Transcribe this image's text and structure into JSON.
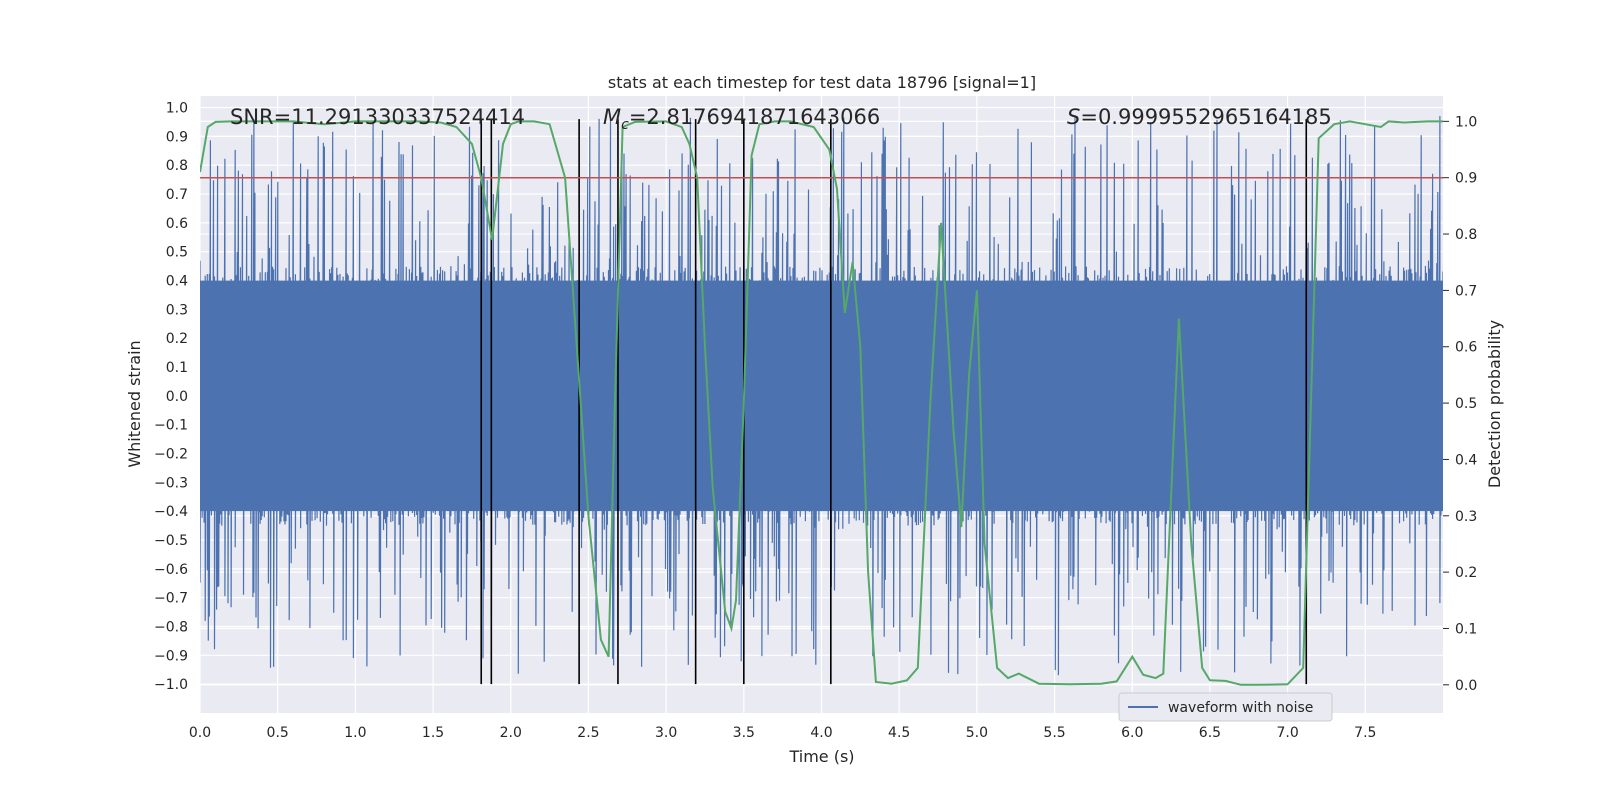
{
  "chart_data": {
    "type": "line",
    "title": "stats at each timestep for test data 18796 [signal=1]",
    "xlabel": "Time (s)",
    "ylabel": "Whitened strain",
    "y2label": "Detection probability",
    "xlim": [
      0.0,
      8.0
    ],
    "ylim": [
      -1.1,
      1.04
    ],
    "y2lim": [
      -0.05,
      1.045
    ],
    "grid": true,
    "legend_position": "bottom-right",
    "x_ticks": [
      "0.0",
      "0.5",
      "1.0",
      "1.5",
      "2.0",
      "2.5",
      "3.0",
      "3.5",
      "4.0",
      "4.5",
      "5.0",
      "5.5",
      "6.0",
      "6.5",
      "7.0",
      "7.5"
    ],
    "y_ticks": [
      "1.0",
      "0.9",
      "0.8",
      "0.7",
      "0.6",
      "0.5",
      "0.4",
      "0.3",
      "0.2",
      "0.1",
      "0.0",
      "−0.1",
      "−0.2",
      "−0.3",
      "−0.4",
      "−0.5",
      "−0.6",
      "−0.7",
      "−0.8",
      "−0.9",
      "−1.0"
    ],
    "y2_ticks": [
      "1.0",
      "0.9",
      "0.8",
      "0.7",
      "0.6",
      "0.5",
      "0.4",
      "0.3",
      "0.2",
      "0.1",
      "0.0"
    ],
    "annotations": {
      "snr": "SNR=11.291330337524414",
      "mc_symbol": "M",
      "mc_sub": "c",
      "mc_value": "=2.8176941871643066",
      "s_symbol": "S",
      "s_value": "=0.9999552965164185"
    },
    "threshold": {
      "y2": 0.9,
      "color": "#c44e52"
    },
    "event_markers_x": [
      1.81,
      1.875,
      2.44,
      2.69,
      3.19,
      3.5,
      4.06,
      7.12
    ],
    "series": [
      {
        "name": "waveform with noise",
        "axis": "left",
        "color": "#4c72b0",
        "envelope_sample_count": 1200,
        "typical_amplitude": 0.45,
        "peak_amplitude": 1.0
      },
      {
        "axis": "right",
        "color": "#55a868",
        "x": [
          0.0,
          0.05,
          0.1,
          0.2,
          0.4,
          0.6,
          0.8,
          1.0,
          1.2,
          1.4,
          1.55,
          1.65,
          1.75,
          1.81,
          1.88,
          1.95,
          2.0,
          2.05,
          2.15,
          2.25,
          2.35,
          2.4,
          2.45,
          2.5,
          2.58,
          2.63,
          2.67,
          2.72,
          2.8,
          3.0,
          3.1,
          3.15,
          3.2,
          3.25,
          3.3,
          3.38,
          3.42,
          3.45,
          3.5,
          3.55,
          3.6,
          3.7,
          3.8,
          3.95,
          4.05,
          4.1,
          4.15,
          4.2,
          4.25,
          4.3,
          4.35,
          4.45,
          4.55,
          4.62,
          4.7,
          4.77,
          4.85,
          4.9,
          4.95,
          5.0,
          5.05,
          5.13,
          5.2,
          5.27,
          5.4,
          5.6,
          5.8,
          5.9,
          6.0,
          6.07,
          6.15,
          6.2,
          6.3,
          6.38,
          6.45,
          6.5,
          6.6,
          6.7,
          6.8,
          7.0,
          7.1,
          7.2,
          7.3,
          7.4,
          7.5,
          7.6,
          7.65,
          7.75,
          7.9,
          8.0
        ],
        "values": [
          0.91,
          0.99,
          0.999,
          1.0,
          1.0,
          1.0,
          0.995,
          1.0,
          1.0,
          1.0,
          0.998,
          0.99,
          0.96,
          0.9,
          0.79,
          0.96,
          0.995,
          1.0,
          1.0,
          0.995,
          0.9,
          0.7,
          0.5,
          0.3,
          0.08,
          0.05,
          0.5,
          0.99,
          0.999,
          1.0,
          0.99,
          0.96,
          0.9,
          0.6,
          0.35,
          0.13,
          0.1,
          0.15,
          0.5,
          0.94,
          0.995,
          1.0,
          1.0,
          0.99,
          0.95,
          0.88,
          0.66,
          0.75,
          0.6,
          0.2,
          0.005,
          0.002,
          0.008,
          0.03,
          0.5,
          0.82,
          0.45,
          0.28,
          0.55,
          0.7,
          0.25,
          0.03,
          0.012,
          0.02,
          0.002,
          0.001,
          0.002,
          0.006,
          0.05,
          0.018,
          0.012,
          0.02,
          0.65,
          0.25,
          0.03,
          0.008,
          0.007,
          0.0,
          0.0,
          0.001,
          0.03,
          0.97,
          0.995,
          1.0,
          0.995,
          0.99,
          1.0,
          0.998,
          1.0,
          1.0
        ]
      }
    ]
  }
}
